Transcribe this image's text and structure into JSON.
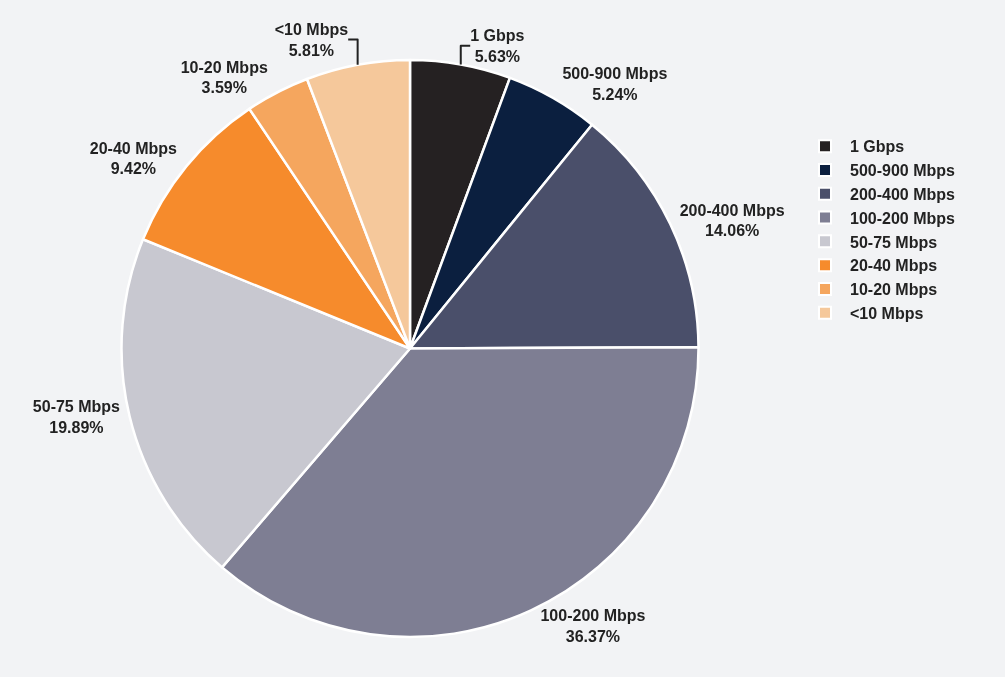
{
  "chart_data": {
    "type": "pie",
    "categories": [
      "1 Gbps",
      "500-900 Mbps",
      "200-400 Mbps",
      "100-200 Mbps",
      "50-75 Mbps",
      "20-40 Mbps",
      "10-20 Mbps",
      "<10 Mbps"
    ],
    "values": [
      5.63,
      5.24,
      14.06,
      36.37,
      19.89,
      9.42,
      3.59,
      5.81
    ],
    "value_labels": [
      "5.63%",
      "5.24%",
      "14.06%",
      "36.37%",
      "19.89%",
      "9.42%",
      "3.59%",
      "5.81%"
    ],
    "colors": [
      "#252122",
      "#0b1f3f",
      "#4a4f6a",
      "#7e7e93",
      "#c8c8d0",
      "#f68b2c",
      "#f5a65e",
      "#f5c89b"
    ],
    "legend": "right"
  }
}
